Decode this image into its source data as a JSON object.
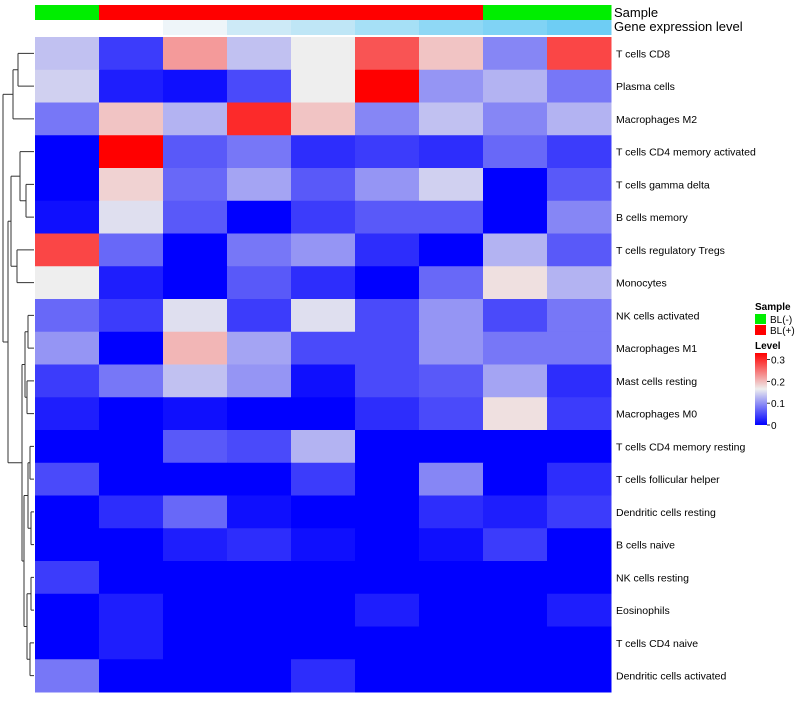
{
  "chart_data": {
    "type": "heatmap",
    "annotation_titles": {
      "sample": "Sample",
      "expression": "Gene expression level"
    },
    "columns": [
      {
        "sample": "BL(-)"
      },
      {
        "sample": "BL(+)"
      },
      {
        "sample": "BL(+)"
      },
      {
        "sample": "BL(+)"
      },
      {
        "sample": "BL(+)"
      },
      {
        "sample": "BL(+)"
      },
      {
        "sample": "BL(+)"
      },
      {
        "sample": "BL(-)"
      },
      {
        "sample": "BL(-)"
      }
    ],
    "expression_colors": [
      "#ffffff",
      "#ffffff",
      "#eef5f9",
      "#cdeaf7",
      "#bfe6f6",
      "#a6e0f6",
      "#8fd8f5",
      "#80d3f5",
      "#6ecdf4"
    ],
    "rows": [
      "T cells CD8",
      "Plasma cells",
      "Macrophages M2",
      "T cells CD4 memory activated",
      "T cells gamma delta",
      "B cells memory",
      "T cells regulatory  Tregs",
      "Monocytes",
      "NK cells activated",
      "Macrophages M1",
      "Mast cells resting",
      "Macrophages M0",
      "T cells CD4 memory resting",
      "T cells follicular helper",
      "Dendritic cells resting",
      "B cells naive",
      "NK cells resting",
      "Eosinophils",
      "T cells CD4 naive",
      "Dendritic cells activated"
    ],
    "values": [
      [
        0.13,
        0.04,
        0.22,
        0.13,
        0.16,
        0.27,
        0.19,
        0.09,
        0.28
      ],
      [
        0.14,
        0.02,
        0.01,
        0.05,
        0.16,
        0.33,
        0.1,
        0.12,
        0.08
      ],
      [
        0.08,
        0.19,
        0.12,
        0.3,
        0.19,
        0.09,
        0.13,
        0.09,
        0.12
      ],
      [
        0.0,
        0.33,
        0.06,
        0.08,
        0.03,
        0.04,
        0.03,
        0.07,
        0.04
      ],
      [
        0.0,
        0.18,
        0.07,
        0.11,
        0.06,
        0.1,
        0.14,
        0.0,
        0.06
      ],
      [
        0.01,
        0.15,
        0.06,
        0.0,
        0.04,
        0.06,
        0.06,
        0.0,
        0.09
      ],
      [
        0.28,
        0.07,
        0.0,
        0.08,
        0.1,
        0.03,
        0.0,
        0.12,
        0.06
      ],
      [
        0.16,
        0.02,
        0.0,
        0.06,
        0.03,
        0.0,
        0.07,
        0.17,
        0.12
      ],
      [
        0.07,
        0.04,
        0.15,
        0.04,
        0.15,
        0.05,
        0.1,
        0.05,
        0.08
      ],
      [
        0.1,
        0.0,
        0.2,
        0.11,
        0.05,
        0.05,
        0.1,
        0.08,
        0.08
      ],
      [
        0.04,
        0.08,
        0.13,
        0.1,
        0.01,
        0.05,
        0.06,
        0.11,
        0.03
      ],
      [
        0.02,
        0.0,
        0.01,
        0.0,
        0.0,
        0.03,
        0.05,
        0.17,
        0.04
      ],
      [
        0.0,
        0.0,
        0.06,
        0.05,
        0.12,
        0.0,
        0.0,
        0.0,
        0.0
      ],
      [
        0.05,
        0.0,
        0.0,
        0.0,
        0.04,
        0.0,
        0.09,
        0.0,
        0.03
      ],
      [
        0.0,
        0.03,
        0.07,
        0.01,
        0.0,
        0.0,
        0.03,
        0.02,
        0.04
      ],
      [
        0.0,
        0.0,
        0.02,
        0.03,
        0.01,
        0.0,
        0.01,
        0.04,
        0.0
      ],
      [
        0.04,
        0.0,
        0.0,
        0.0,
        0.0,
        0.0,
        0.0,
        0.0,
        0.0
      ],
      [
        0.0,
        0.02,
        0.0,
        0.0,
        0.0,
        0.02,
        0.0,
        0.0,
        0.02
      ],
      [
        0.0,
        0.02,
        0.0,
        0.0,
        0.0,
        0.0,
        0.0,
        0.0,
        0.0
      ],
      [
        0.08,
        0.0,
        0.0,
        0.0,
        0.03,
        0.0,
        0.0,
        0.0,
        0.0
      ]
    ],
    "color_scale": {
      "low": "#0000ff",
      "mid": "#eeeeee",
      "high": "#ff0000",
      "min": 0,
      "mid_value": 0.16,
      "max": 0.33
    },
    "legend": {
      "sample_title": "Sample",
      "sample_entries": [
        {
          "label": "BL(-)",
          "color": "#00ee00"
        },
        {
          "label": "BL(+)",
          "color": "#ff0000"
        }
      ],
      "level_title": "Level",
      "level_ticks": [
        "0.3",
        "0.2",
        "0.1",
        "0"
      ],
      "level_tick_values": [
        0.3,
        0.2,
        0.1,
        0
      ]
    },
    "row_dendrogram": true,
    "grid": false
  }
}
